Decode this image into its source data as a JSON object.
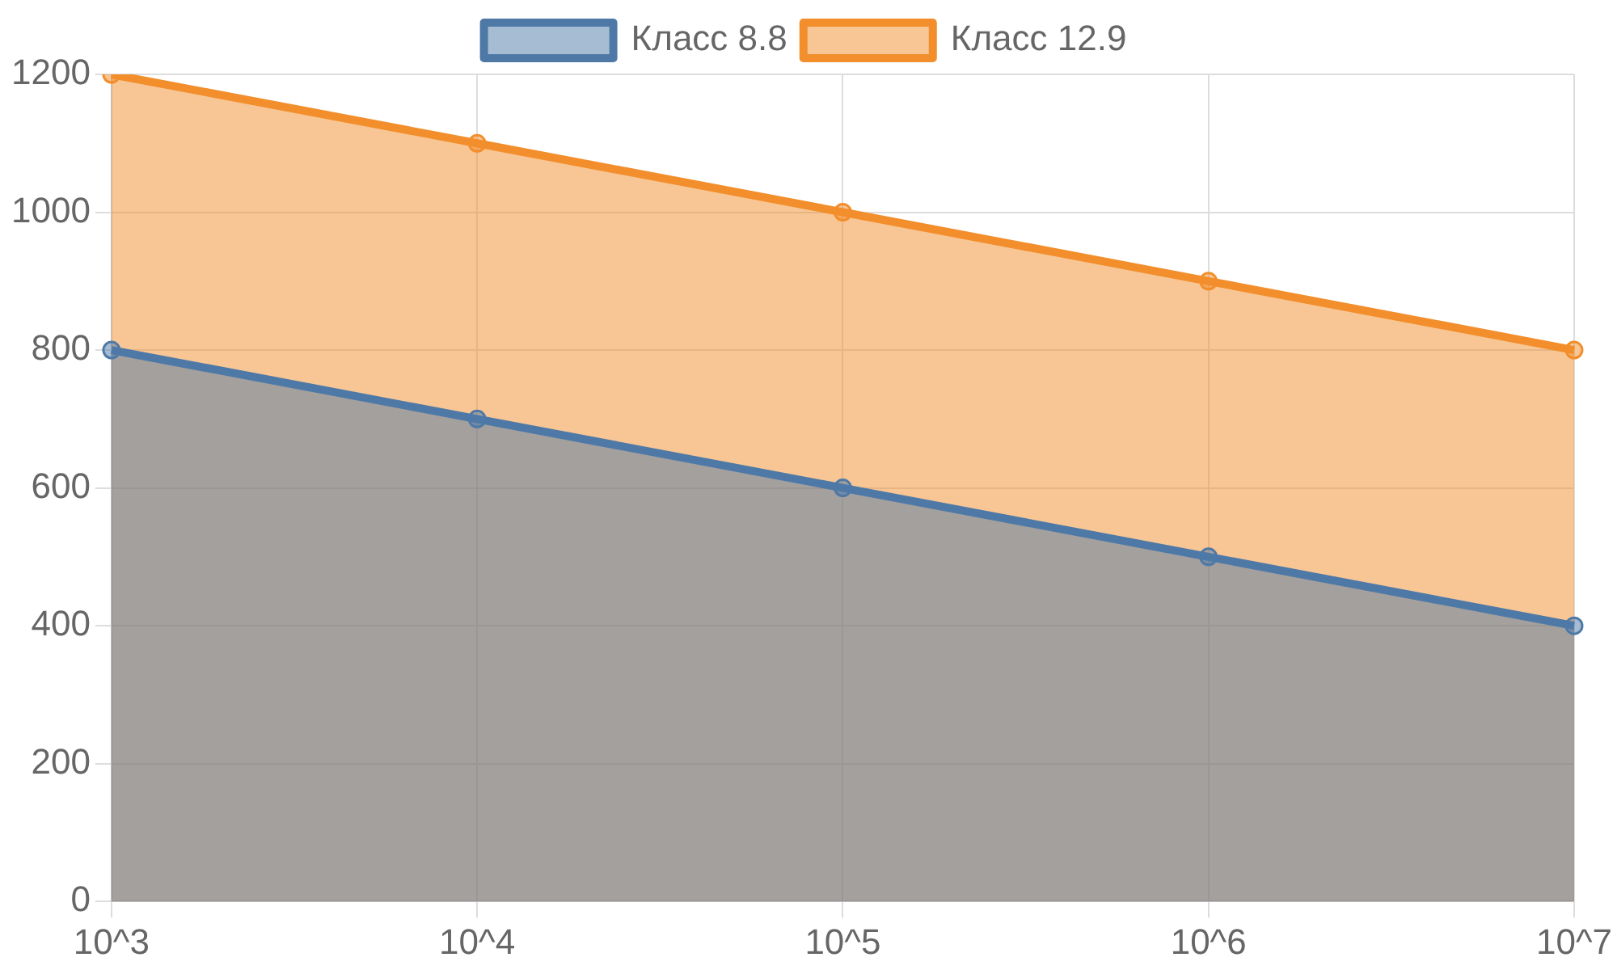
{
  "chart_data": {
    "type": "area",
    "categories": [
      "10^3",
      "10^4",
      "10^5",
      "10^6",
      "10^7"
    ],
    "series": [
      {
        "name": "Класс 8.8",
        "color": "#4e79a7",
        "values": [
          800,
          700,
          600,
          500,
          400
        ]
      },
      {
        "name": "Класс 12.9",
        "color": "#f28e2b",
        "values": [
          1200,
          1100,
          1000,
          900,
          800
        ]
      }
    ],
    "ylim": [
      0,
      1200
    ],
    "yticks": [
      0,
      200,
      400,
      600,
      800,
      1000,
      1200
    ],
    "grid": true,
    "legend": "top",
    "marker": "circle"
  }
}
